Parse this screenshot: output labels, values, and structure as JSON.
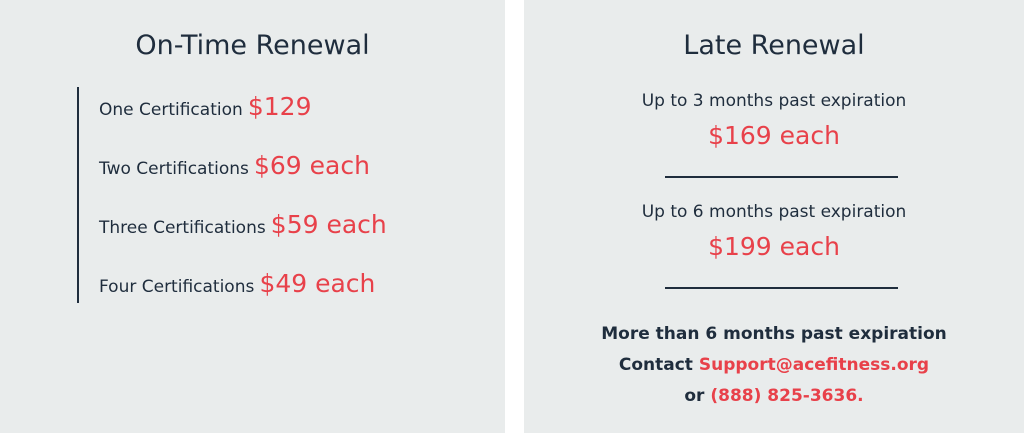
{
  "colors": {
    "text": "#1f2d3d",
    "accent": "#e8414a",
    "panel": "#e9ecec"
  },
  "on_time": {
    "title": "On-Time Renewal",
    "items": [
      {
        "label": "One Certification",
        "price": "$129"
      },
      {
        "label": "Two Certifications",
        "price": "$69 each"
      },
      {
        "label": "Three Certifications",
        "price": "$59 each"
      },
      {
        "label": "Four Certifications",
        "price": "$49 each"
      }
    ]
  },
  "late": {
    "title": "Late Renewal",
    "tiers": [
      {
        "label": "Up to 3 months past expiration",
        "price": "$169 each"
      },
      {
        "label": "Up to 6 months past expiration",
        "price": "$199 each"
      }
    ],
    "over": {
      "label": "More than 6 months past expiration",
      "contact": "Contact",
      "email": "Support@acefitness.org",
      "or": "or",
      "phone": "(888) 825-3636."
    }
  }
}
